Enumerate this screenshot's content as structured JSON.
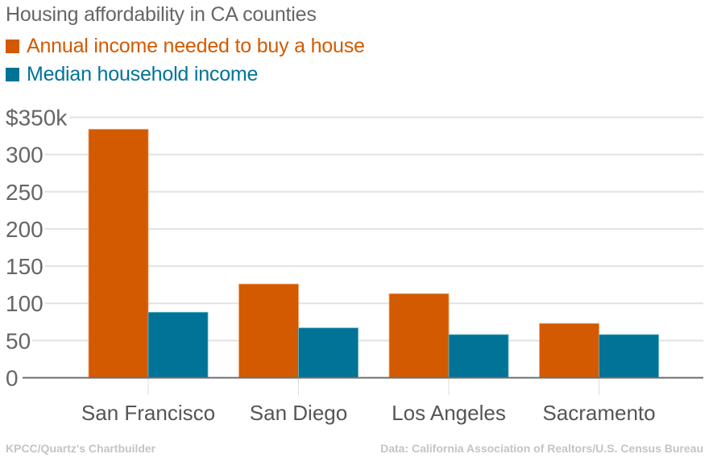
{
  "chart_data": {
    "type": "bar",
    "title": "Housing affordability in CA counties",
    "categories": [
      "San Francisco",
      "San Diego",
      "Los Angeles",
      "Sacramento"
    ],
    "series": [
      {
        "name": "Annual income needed to buy a house",
        "color": "#d35a00",
        "values": [
          334,
          126,
          113,
          73
        ]
      },
      {
        "name": "Median household income",
        "color": "#007396",
        "values": [
          88,
          67,
          58,
          58
        ]
      }
    ],
    "xlabel": "",
    "ylabel": "",
    "ylim": [
      0,
      350
    ],
    "yticks": [
      0,
      50,
      100,
      150,
      200,
      250,
      300,
      350
    ],
    "ytick_labels": [
      "0",
      "50",
      "100",
      "150",
      "200",
      "250",
      "300",
      "$350k"
    ],
    "grid": true,
    "legend_position": "top-left",
    "units": "thousands of dollars"
  },
  "footer": {
    "credit": "KPCC/Quartz's Chartbuilder",
    "source": "Data: California Association of Realtors/U.S. Census Bureau"
  }
}
